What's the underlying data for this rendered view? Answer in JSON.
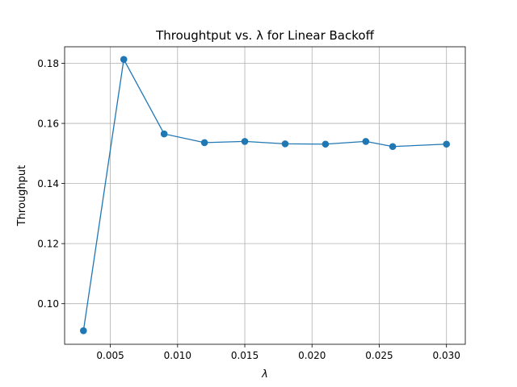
{
  "chart_data": {
    "type": "line",
    "title": "Throughtput vs. λ for Linear Backoff",
    "xlabel": "λ",
    "ylabel": "Throughput",
    "xlim": [
      0.0016,
      0.0314
    ],
    "ylim": [
      0.0865,
      0.1855
    ],
    "xticks": [
      0.005,
      0.01,
      0.015,
      0.02,
      0.025,
      0.03
    ],
    "xtick_labels": [
      "0.005",
      "0.010",
      "0.015",
      "0.020",
      "0.025",
      "0.030"
    ],
    "yticks": [
      0.1,
      0.12,
      0.14,
      0.16,
      0.18
    ],
    "ytick_labels": [
      "0.10",
      "0.12",
      "0.14",
      "0.16",
      "0.18"
    ],
    "grid": true,
    "series": [
      {
        "color": "#1f77b4",
        "marker": "circle",
        "x": [
          0.003,
          0.006,
          0.009,
          0.012,
          0.015,
          0.018,
          0.021,
          0.024,
          0.026,
          0.03
        ],
        "y": [
          0.091,
          0.1813,
          0.1565,
          0.1536,
          0.154,
          0.1532,
          0.1531,
          0.154,
          0.1523,
          0.1531
        ]
      }
    ]
  }
}
